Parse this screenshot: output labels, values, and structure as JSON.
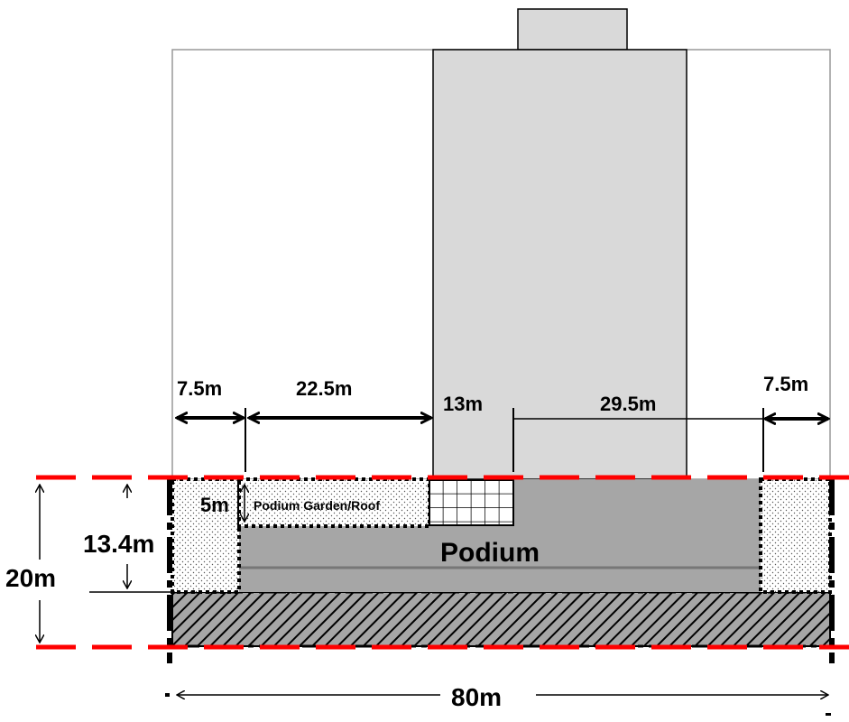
{
  "labels": {
    "setback_left": "7.5m",
    "span_left": "22.5m",
    "tower_width": "13m",
    "span_right": "29.5m",
    "setback_right": "7.5m",
    "garden_height": "5m",
    "garden_label": "Podium Garden/Roof",
    "podium_label": "Podium",
    "podium_height": "13.4m",
    "total_height": "20m",
    "total_width": "80m"
  },
  "colors": {
    "tower_fill": "#d9d9d9",
    "podium_fill": "#a6a6a6",
    "boundary_red": "#ff0000",
    "outline_black": "#000000",
    "background_outline": "#999999"
  }
}
